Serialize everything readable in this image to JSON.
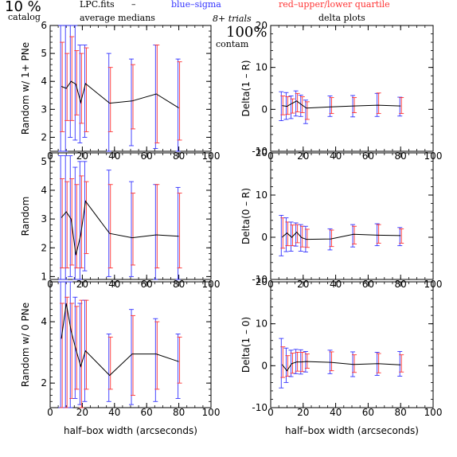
{
  "header": {
    "percent": "10 %",
    "catalog": "catalog",
    "file": "LPC.fits",
    "dash": "–",
    "blue_legend": "blue–sigma",
    "red_legend": "red–upper/lower quartile",
    "average_medians": "average medians",
    "trials": "8+ trials",
    "delta_plots": "delta plots",
    "contam_percent": "100%",
    "contam": "contam"
  },
  "colors": {
    "line": "#000000",
    "sigma": "#3333ff",
    "quartile": "#ff3333",
    "frame": "#000000"
  },
  "chart_data": [
    {
      "type": "line",
      "panel": "left-top",
      "xlabel": "",
      "ylabel": "Random w/ 1+ PNe",
      "xlim": [
        0,
        100
      ],
      "ylim": [
        1.5,
        6
      ],
      "xticks": [
        "0",
        "20",
        "40",
        "60",
        "80",
        "100"
      ],
      "yticks": [
        "2",
        "3",
        "4",
        "5",
        "6"
      ],
      "x": [
        7,
        10,
        13,
        16,
        19,
        22,
        37,
        51,
        66,
        80
      ],
      "values": [
        3.82,
        3.75,
        4.0,
        3.9,
        3.25,
        3.92,
        3.22,
        3.3,
        3.55,
        3.05
      ],
      "sigma": [
        [
          1.5,
          6.0
        ],
        [
          1.5,
          6.0
        ],
        [
          2.0,
          6.0
        ],
        [
          1.9,
          6.0
        ],
        [
          1.8,
          5.3
        ],
        [
          2.0,
          5.3
        ],
        [
          1.5,
          5.0
        ],
        [
          1.7,
          4.8
        ],
        [
          1.6,
          5.3
        ],
        [
          1.5,
          4.8
        ]
      ],
      "quartile": [
        [
          2.2,
          5.4
        ],
        [
          2.6,
          5.0
        ],
        [
          2.6,
          5.6
        ],
        [
          2.8,
          5.1
        ],
        [
          2.5,
          5.0
        ],
        [
          2.2,
          5.2
        ],
        [
          2.2,
          4.5
        ],
        [
          2.3,
          4.6
        ],
        [
          1.8,
          5.3
        ],
        [
          1.9,
          4.7
        ]
      ]
    },
    {
      "type": "line",
      "panel": "right-top",
      "xlabel": "",
      "ylabel": "Delta(1 – R)",
      "xlim": [
        0,
        100
      ],
      "ylim": [
        -10,
        20
      ],
      "xticks": [
        "0",
        "20",
        "40",
        "60",
        "80",
        "100"
      ],
      "yticks": [
        "-10",
        "0",
        "10",
        "20"
      ],
      "x": [
        7,
        10,
        13,
        16,
        19,
        22,
        37,
        51,
        66,
        80
      ],
      "values": [
        0.9,
        0.7,
        1.4,
        2.0,
        1.1,
        0.3,
        0.6,
        0.8,
        1.0,
        0.8
      ],
      "sigma": [
        [
          -2.7,
          4.2
        ],
        [
          -2.4,
          4.0
        ],
        [
          -2.2,
          3.2
        ],
        [
          -1.6,
          4.4
        ],
        [
          -1.7,
          3.4
        ],
        [
          -3.4,
          2.2
        ],
        [
          -1.7,
          3.2
        ],
        [
          -1.8,
          3.3
        ],
        [
          -1.7,
          3.8
        ],
        [
          -1.6,
          2.9
        ]
      ],
      "quartile": [
        [
          -1.3,
          3.2
        ],
        [
          -1.2,
          3.0
        ],
        [
          -0.9,
          2.5
        ],
        [
          -0.6,
          3.8
        ],
        [
          -0.8,
          3.0
        ],
        [
          -2.4,
          1.8
        ],
        [
          -1.0,
          2.8
        ],
        [
          -0.8,
          2.8
        ],
        [
          -1.0,
          3.9
        ],
        [
          -1.0,
          2.8
        ]
      ]
    },
    {
      "type": "line",
      "panel": "left-middle",
      "xlabel": "",
      "ylabel": "Random",
      "xlim": [
        0,
        100
      ],
      "ylim": [
        0.9,
        5.3
      ],
      "xticks": [
        "0",
        "20",
        "40",
        "60",
        "80",
        "100"
      ],
      "yticks": [
        "1",
        "2",
        "3",
        "4",
        "5"
      ],
      "x": [
        7,
        10,
        13,
        16,
        19,
        22,
        37,
        51,
        66,
        80
      ],
      "values": [
        3.05,
        3.25,
        3.0,
        1.75,
        2.45,
        3.62,
        2.5,
        2.35,
        2.45,
        2.4
      ],
      "sigma": [
        [
          0.9,
          5.2
        ],
        [
          0.9,
          5.2
        ],
        [
          1.0,
          5.2
        ],
        [
          0.9,
          4.8
        ],
        [
          0.9,
          5.0
        ],
        [
          1.2,
          5.0
        ],
        [
          1.0,
          4.7
        ],
        [
          1.0,
          4.3
        ],
        [
          0.9,
          4.2
        ],
        [
          0.9,
          4.1
        ]
      ],
      "quartile": [
        [
          1.3,
          4.4
        ],
        [
          1.3,
          4.3
        ],
        [
          1.4,
          4.4
        ],
        [
          1.3,
          4.2
        ],
        [
          1.3,
          4.5
        ],
        [
          1.8,
          4.3
        ],
        [
          1.3,
          4.2
        ],
        [
          1.4,
          3.9
        ],
        [
          1.3,
          4.2
        ],
        [
          1.3,
          3.9
        ]
      ]
    },
    {
      "type": "line",
      "panel": "right-middle",
      "xlabel": "",
      "ylabel": "Delta(0 – R)",
      "xlim": [
        0,
        100
      ],
      "ylim": [
        -10,
        20
      ],
      "xticks": [
        "0",
        "20",
        "40",
        "60",
        "80",
        "100"
      ],
      "yticks": [
        "-10",
        "0",
        "10",
        "20"
      ],
      "x": [
        7,
        10,
        13,
        16,
        19,
        22,
        37,
        51,
        66,
        80
      ],
      "values": [
        0.0,
        1.0,
        0.0,
        1.2,
        -0.1,
        -0.5,
        -0.4,
        0.7,
        0.5,
        0.4
      ],
      "sigma": [
        [
          -4.4,
          5.2
        ],
        [
          -3.4,
          4.6
        ],
        [
          -3.3,
          3.6
        ],
        [
          -2.1,
          3.4
        ],
        [
          -3.3,
          3.0
        ],
        [
          -3.5,
          2.6
        ],
        [
          -3.0,
          2.0
        ],
        [
          -2.3,
          3.0
        ],
        [
          -2.0,
          3.2
        ],
        [
          -2.0,
          2.3
        ]
      ],
      "quartile": [
        [
          -2.6,
          4.6
        ],
        [
          -2.0,
          3.6
        ],
        [
          -2.0,
          2.9
        ],
        [
          -1.3,
          3.0
        ],
        [
          -2.3,
          2.6
        ],
        [
          -2.4,
          1.9
        ],
        [
          -2.2,
          1.7
        ],
        [
          -1.6,
          2.6
        ],
        [
          -1.4,
          3.0
        ],
        [
          -1.4,
          2.0
        ]
      ]
    },
    {
      "type": "line",
      "panel": "left-bottom",
      "xlabel": "half–box width (arcseconds)",
      "ylabel": "Random w/ 0 PNe",
      "xlim": [
        0,
        100
      ],
      "ylim": [
        1.2,
        5.3
      ],
      "xticks": [
        "0",
        "20",
        "40",
        "60",
        "80",
        "100"
      ],
      "yticks": [
        "2",
        "4"
      ],
      "x": [
        7,
        10,
        13,
        16,
        19,
        22,
        37,
        51,
        66,
        80
      ],
      "values": [
        3.45,
        4.6,
        3.7,
        3.1,
        2.55,
        3.05,
        2.25,
        2.95,
        2.95,
        2.7
      ],
      "sigma": [
        [
          1.2,
          5.3
        ],
        [
          1.2,
          5.3
        ],
        [
          1.2,
          5.3
        ],
        [
          1.5,
          4.8
        ],
        [
          1.3,
          4.6
        ],
        [
          1.4,
          4.7
        ],
        [
          1.4,
          3.6
        ],
        [
          1.3,
          4.4
        ],
        [
          1.4,
          4.1
        ],
        [
          1.5,
          3.6
        ]
      ],
      "quartile": [
        [
          1.2,
          4.6
        ],
        [
          1.2,
          4.8
        ],
        [
          1.5,
          4.6
        ],
        [
          1.8,
          4.5
        ],
        [
          1.2,
          4.7
        ],
        [
          1.8,
          4.7
        ],
        [
          1.8,
          3.5
        ],
        [
          1.6,
          4.2
        ],
        [
          1.8,
          4.0
        ],
        [
          2.0,
          3.5
        ]
      ]
    },
    {
      "type": "line",
      "panel": "right-bottom",
      "xlabel": "half–box width (arcseconds)",
      "ylabel": "Delta(1 – 0)",
      "xlim": [
        0,
        100
      ],
      "ylim": [
        -10,
        20
      ],
      "xticks": [
        "0",
        "20",
        "40",
        "60",
        "80",
        "100"
      ],
      "yticks": [
        "-10",
        "0",
        "10",
        "20"
      ],
      "x": [
        7,
        10,
        13,
        16,
        19,
        22,
        37,
        51,
        66,
        80
      ],
      "values": [
        0.3,
        -1.2,
        0.5,
        0.9,
        0.9,
        1.0,
        0.8,
        0.3,
        0.5,
        0.2
      ],
      "sigma": [
        [
          -5.3,
          6.5
        ],
        [
          -4.0,
          4.2
        ],
        [
          -2.6,
          3.7
        ],
        [
          -1.9,
          3.9
        ],
        [
          -2.0,
          3.8
        ],
        [
          -1.5,
          3.4
        ],
        [
          -1.9,
          3.7
        ],
        [
          -2.6,
          3.3
        ],
        [
          -2.3,
          3.2
        ],
        [
          -2.5,
          3.4
        ]
      ],
      "quartile": [
        [
          -2.8,
          4.5
        ],
        [
          -2.5,
          2.4
        ],
        [
          -1.8,
          3.0
        ],
        [
          -1.3,
          3.2
        ],
        [
          -1.4,
          3.2
        ],
        [
          -0.6,
          2.8
        ],
        [
          -1.2,
          3.3
        ],
        [
          -1.6,
          2.6
        ],
        [
          -1.7,
          2.9
        ],
        [
          -1.5,
          2.6
        ]
      ]
    }
  ]
}
